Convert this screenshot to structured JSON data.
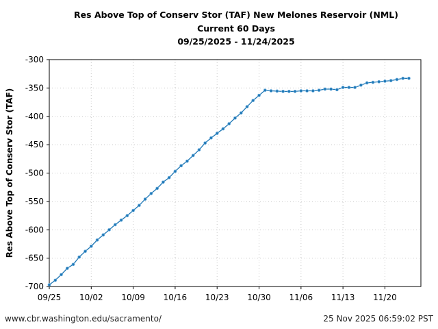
{
  "chart_data": {
    "type": "line",
    "title": [
      "Res Above Top of Conserv Stor (TAF) New Melones Reservoir (NML)",
      "Current 60 Days",
      "09/25/2025 - 11/24/2025"
    ],
    "xlabel": "",
    "ylabel": "Res Above Top of Conserv Stor (TAF)",
    "ylim": [
      -700,
      -300
    ],
    "yticks": [
      -300,
      -350,
      -400,
      -450,
      -500,
      -550,
      -600,
      -650,
      -700
    ],
    "xlim": [
      "2025-09-25",
      "2025-11-26"
    ],
    "xticks": [
      {
        "date": "2025-09-25",
        "label": "09/25"
      },
      {
        "date": "2025-10-02",
        "label": "10/02"
      },
      {
        "date": "2025-10-09",
        "label": "10/09"
      },
      {
        "date": "2025-10-16",
        "label": "10/16"
      },
      {
        "date": "2025-10-23",
        "label": "10/23"
      },
      {
        "date": "2025-10-30",
        "label": "10/30"
      },
      {
        "date": "2025-11-06",
        "label": "11/06"
      },
      {
        "date": "2025-11-13",
        "label": "11/13"
      },
      {
        "date": "2025-11-20",
        "label": "11/20"
      }
    ],
    "grid": true,
    "color": "#1f77b4",
    "start_date": "2025-09-25",
    "series": [
      {
        "values": [
          -697,
          -689,
          -679,
          -668,
          -661,
          -648,
          -638,
          -629,
          -618,
          -609,
          -600,
          -591,
          -583,
          -575,
          -566,
          -557,
          -546,
          -536,
          -527,
          -516,
          -508,
          -497,
          -487,
          -479,
          -469,
          -459,
          -447,
          -438,
          -430,
          -422,
          -413,
          -403,
          -394,
          -383,
          -372,
          -363,
          -354,
          -355,
          -355.5,
          -356,
          -356,
          -356,
          -355,
          -355,
          -355,
          -354,
          -352,
          -352,
          -353,
          -349,
          -349,
          -349,
          -345,
          -341,
          -340,
          -339,
          -338,
          -337,
          -335,
          -333,
          -333
        ]
      }
    ]
  },
  "footer": {
    "source": "www.cbr.washington.edu/sacramento/",
    "timestamp": "25 Nov 2025 06:59:02 PST"
  }
}
